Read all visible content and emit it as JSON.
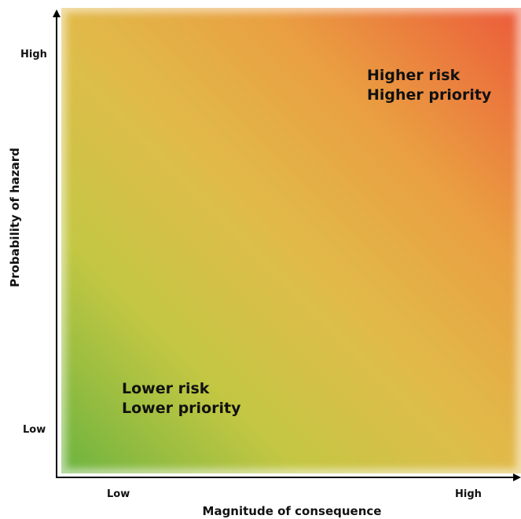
{
  "diagram": {
    "y_axis": {
      "title": "Probability of hazard",
      "high_label": "High",
      "low_label": "Low"
    },
    "x_axis": {
      "title": "Magnitude of consequence",
      "low_label": "Low",
      "high_label": "High"
    },
    "zones": {
      "high": {
        "line1": "Higher risk",
        "line2": "Higher priority"
      },
      "low": {
        "line1": "Lower risk",
        "line2": "Lower priority"
      }
    },
    "colors": {
      "low_risk": "#6ab33f",
      "mid_risk": "#dcb13c",
      "high_risk": "#ec5a3a",
      "axis": "#000000"
    }
  }
}
